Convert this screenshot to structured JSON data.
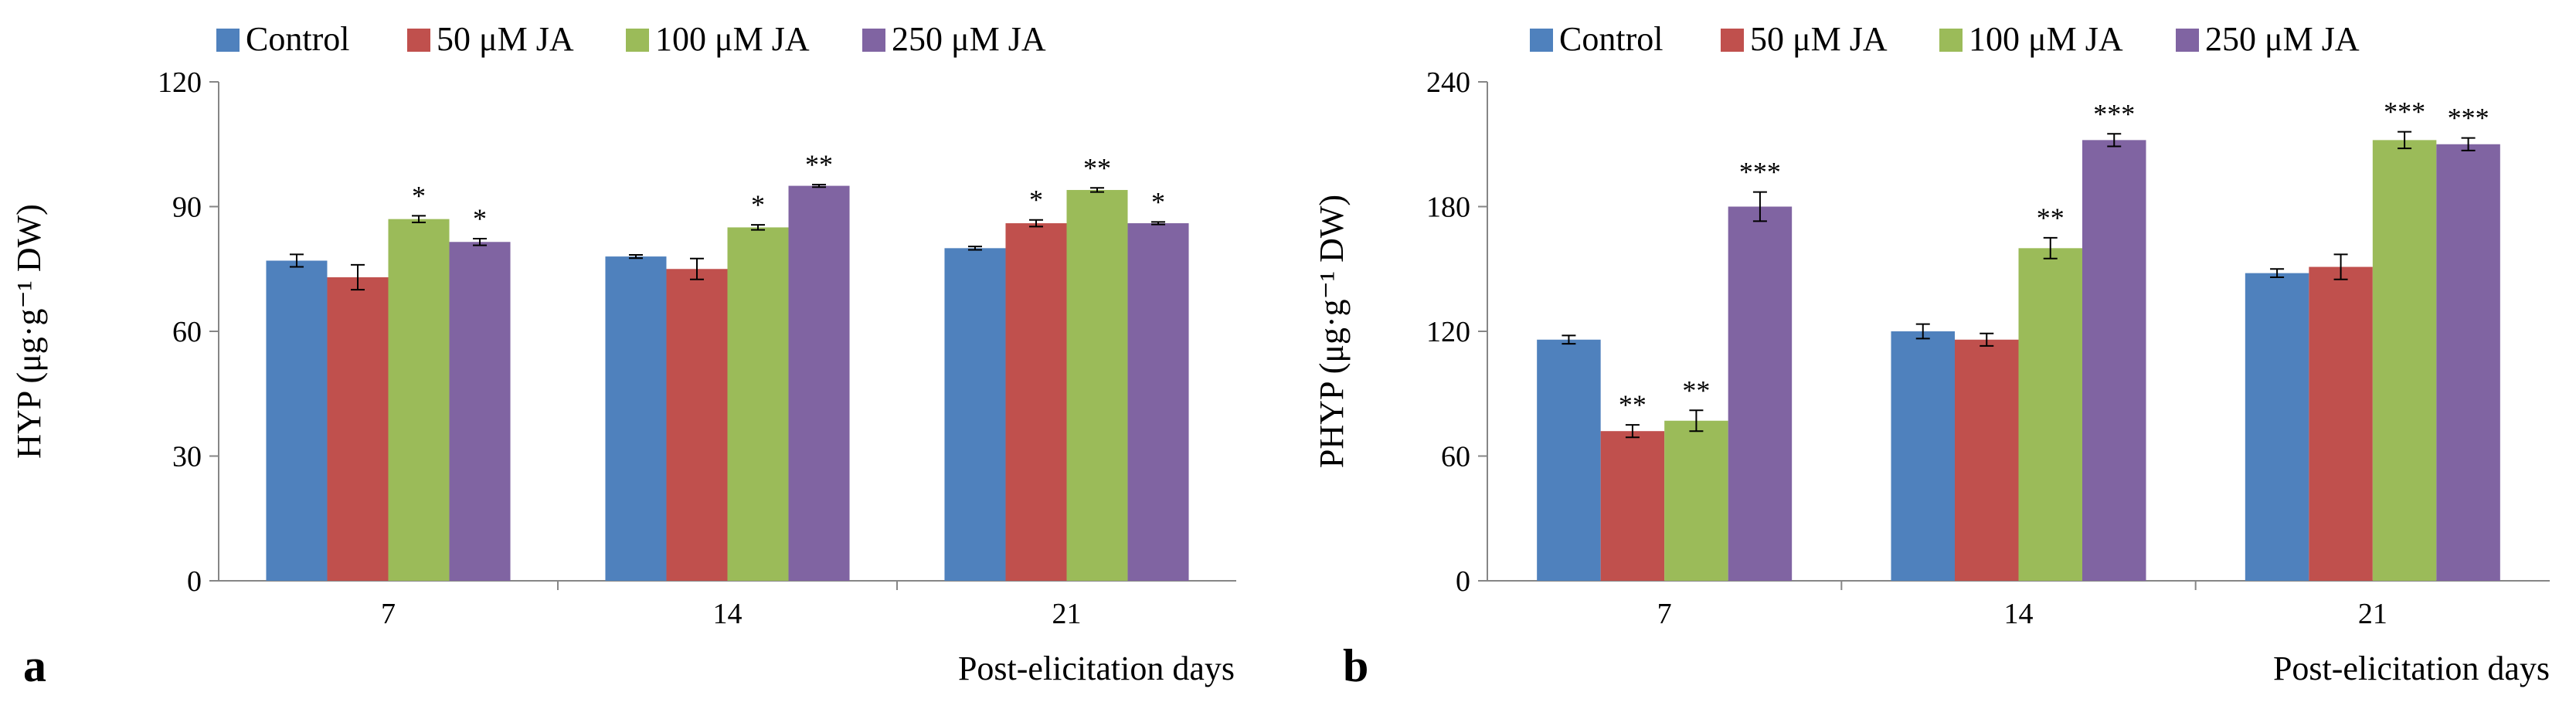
{
  "figure": {
    "legend": [
      {
        "label": "Control",
        "color": "#4F81BD"
      },
      {
        "label": "50 μM JA",
        "color": "#C0504D"
      },
      {
        "label": "100 μM JA",
        "color": "#9BBB59"
      },
      {
        "label": "250 μM JA",
        "color": "#8064A2"
      }
    ],
    "x_title": "Post-elicitation days"
  },
  "chart_data": [
    {
      "type": "bar",
      "panel_label": "a",
      "categories": [
        "7",
        "14",
        "21"
      ],
      "ylabel": "HYP (μg·g⁻¹ DW)",
      "xlabel": "Post-elicitation days",
      "ylim": [
        0,
        120
      ],
      "yticks": [
        "0",
        "30",
        "60",
        "90",
        "120"
      ],
      "series": [
        {
          "name": "Control",
          "color": "#4F81BD",
          "values": [
            77,
            78,
            80
          ],
          "errors": [
            1.5,
            0.4,
            0.4
          ],
          "sig": [
            "",
            "",
            ""
          ]
        },
        {
          "name": "50 μM JA",
          "color": "#C0504D",
          "values": [
            73,
            75,
            86
          ],
          "errors": [
            3,
            2.5,
            0.8
          ],
          "sig": [
            "",
            "",
            "*"
          ]
        },
        {
          "name": "100 μM JA",
          "color": "#9BBB59",
          "values": [
            87,
            85,
            94
          ],
          "errors": [
            0.8,
            0.6,
            0.5
          ],
          "sig": [
            "*",
            "*",
            "**"
          ]
        },
        {
          "name": "250 μM JA",
          "color": "#8064A2",
          "values": [
            81.5,
            95,
            86
          ],
          "errors": [
            0.8,
            0.3,
            0.3
          ],
          "sig": [
            "*",
            "**",
            "*"
          ]
        }
      ]
    },
    {
      "type": "bar",
      "panel_label": "b",
      "categories": [
        "7",
        "14",
        "21"
      ],
      "ylabel": "PHYP (μg·g⁻¹ DW)",
      "xlabel": "Post-elicitation days",
      "ylim": [
        0,
        240
      ],
      "yticks": [
        "0",
        "60",
        "120",
        "180",
        "240"
      ],
      "series": [
        {
          "name": "Control",
          "color": "#4F81BD",
          "values": [
            116,
            120,
            148
          ],
          "errors": [
            2,
            3.5,
            2
          ],
          "sig": [
            "",
            "",
            ""
          ]
        },
        {
          "name": "50 μM JA",
          "color": "#C0504D",
          "values": [
            72,
            116,
            151
          ],
          "errors": [
            3,
            3,
            6
          ],
          "sig": [
            "**",
            "",
            ""
          ]
        },
        {
          "name": "100 μM JA",
          "color": "#9BBB59",
          "values": [
            77,
            160,
            212
          ],
          "errors": [
            5,
            5,
            4
          ],
          "sig": [
            "**",
            "**",
            "***"
          ]
        },
        {
          "name": "250 μM JA",
          "color": "#8064A2",
          "values": [
            180,
            212,
            210
          ],
          "errors": [
            7,
            3,
            3
          ],
          "sig": [
            "***",
            "***",
            "***"
          ]
        }
      ]
    }
  ]
}
